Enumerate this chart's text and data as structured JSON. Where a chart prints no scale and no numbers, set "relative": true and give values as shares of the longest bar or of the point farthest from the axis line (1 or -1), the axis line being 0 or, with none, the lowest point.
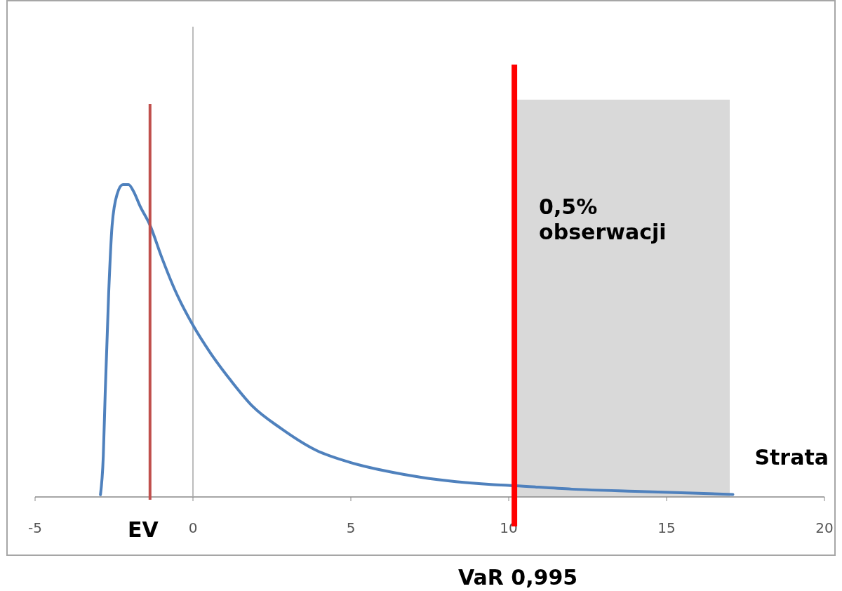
{
  "chart_data": {
    "type": "line",
    "xlabel": "Strata",
    "relative": true,
    "x": [
      -2.93,
      -2.84,
      -2.78,
      -2.67,
      -2.56,
      -2.4,
      -2.22,
      -2.04,
      -1.89,
      -1.67,
      -1.36,
      -1,
      -0.56,
      0,
      0.56,
      1.22,
      1.89,
      2.78,
      3.89,
      5,
      6.11,
      7.22,
      8.33,
      9.44,
      10.18,
      12,
      14,
      16,
      17.1
    ],
    "series": [
      {
        "color": "#4f81bd",
        "values": [
          0.007,
          0.13,
          0.33,
          0.65,
          0.87,
          0.97,
          1,
          1,
          0.98,
          0.93,
          0.87,
          0.77,
          0.66,
          0.55,
          0.46,
          0.37,
          0.29,
          0.22,
          0.15,
          0.11,
          0.083,
          0.063,
          0.049,
          0.04,
          0.036,
          0.025,
          0.018,
          0.012,
          0.008
        ]
      }
    ],
    "xlim": [
      -5,
      20
    ],
    "xticks": [
      -5,
      0,
      5,
      10,
      15,
      20
    ],
    "ref_lines": [
      {
        "axis": "x",
        "value": 0,
        "color": "#a6a6a6"
      },
      {
        "axis": "x",
        "value": -1.36,
        "label": "EV",
        "color": "#c0504d"
      },
      {
        "axis": "x",
        "value": 10.18,
        "label": "VaR 0,995",
        "color": "#ff0000"
      }
    ],
    "bands": [
      {
        "axis": "x",
        "from": 10.18,
        "to": 17,
        "label": "0,5% obserwacji",
        "color": "#d9d9d9"
      }
    ]
  }
}
